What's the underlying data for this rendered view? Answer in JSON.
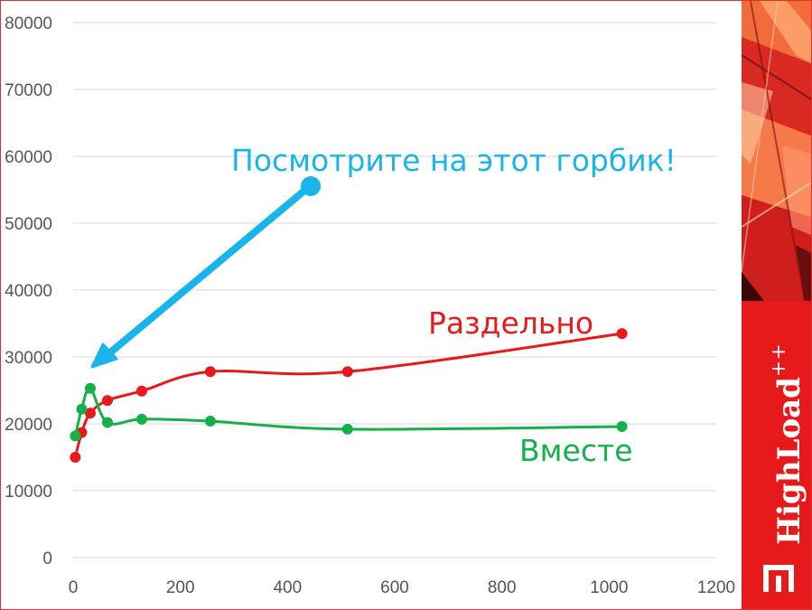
{
  "colors": {
    "red": "#e8191b",
    "green": "#14b14b",
    "blue": "#19b5ea",
    "grid": "#d9d9d9",
    "tick": "#555555"
  },
  "chart_data": {
    "type": "scatter",
    "title": "",
    "xlabel": "",
    "ylabel": "",
    "xlim": [
      0,
      1200
    ],
    "ylim": [
      0,
      80000
    ],
    "x_ticks": [
      0,
      200,
      400,
      600,
      800,
      1000,
      1200
    ],
    "y_ticks": [
      0,
      10000,
      20000,
      30000,
      40000,
      50000,
      60000,
      70000,
      80000
    ],
    "grid": true,
    "smooth_lines": true,
    "series": [
      {
        "name": "Раздельно",
        "color": "#e8191b",
        "x": [
          4,
          16,
          32,
          64,
          128,
          256,
          512,
          1024
        ],
        "y": [
          15000,
          18700,
          21600,
          23500,
          24900,
          27800,
          27800,
          33500
        ]
      },
      {
        "name": "Вместе",
        "color": "#14b14b",
        "x": [
          4,
          16,
          32,
          64,
          128,
          256,
          512,
          1024
        ],
        "y": [
          18200,
          22200,
          25300,
          20200,
          20700,
          20400,
          19200,
          19600
        ]
      }
    ],
    "annotation": {
      "text": "Посмотрите на этот горбик!"
    }
  },
  "brand": {
    "logo_text": "HighLoad",
    "logo_sup": "++"
  }
}
